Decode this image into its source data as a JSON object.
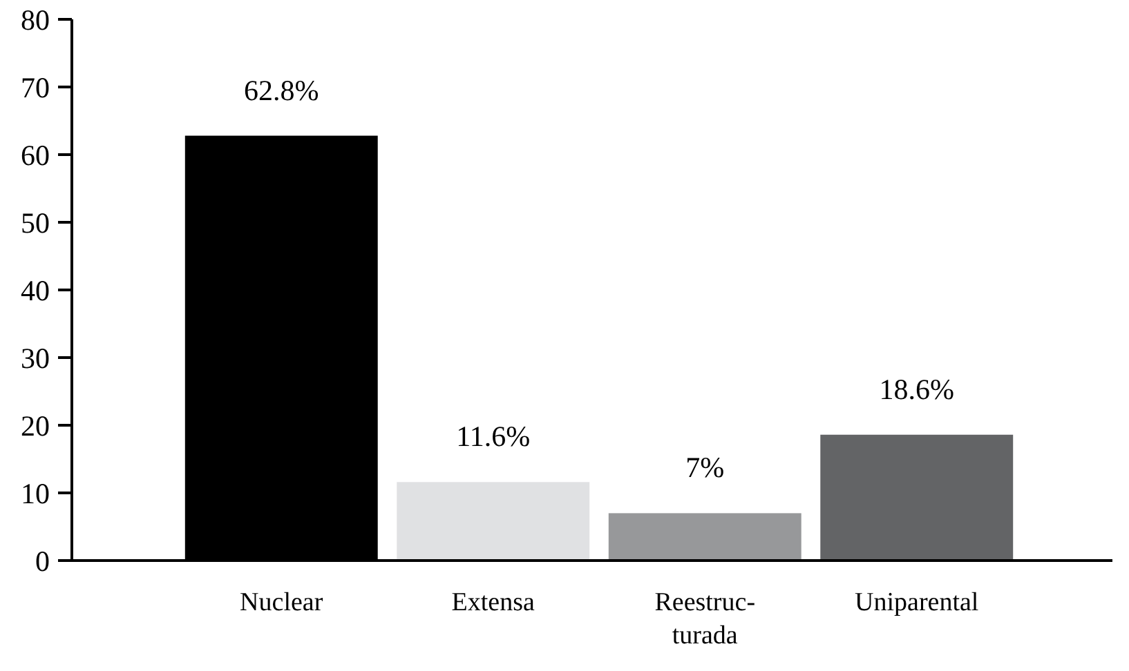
{
  "chart_data": {
    "type": "bar",
    "categories": [
      "Nuclear",
      "Extensa",
      "Reestruc-\nturada",
      "Uniparental"
    ],
    "values": [
      62.8,
      11.6,
      7,
      18.6
    ],
    "colors": [
      "#000000",
      "#e0e1e3",
      "#97989a",
      "#636466"
    ],
    "value_labels": [
      "62.8%",
      "11.6%",
      "7%",
      "18.6%"
    ],
    "ylim": [
      0,
      80
    ],
    "yticks": [
      0,
      10,
      20,
      30,
      40,
      50,
      60,
      70,
      80
    ],
    "grid": false
  }
}
